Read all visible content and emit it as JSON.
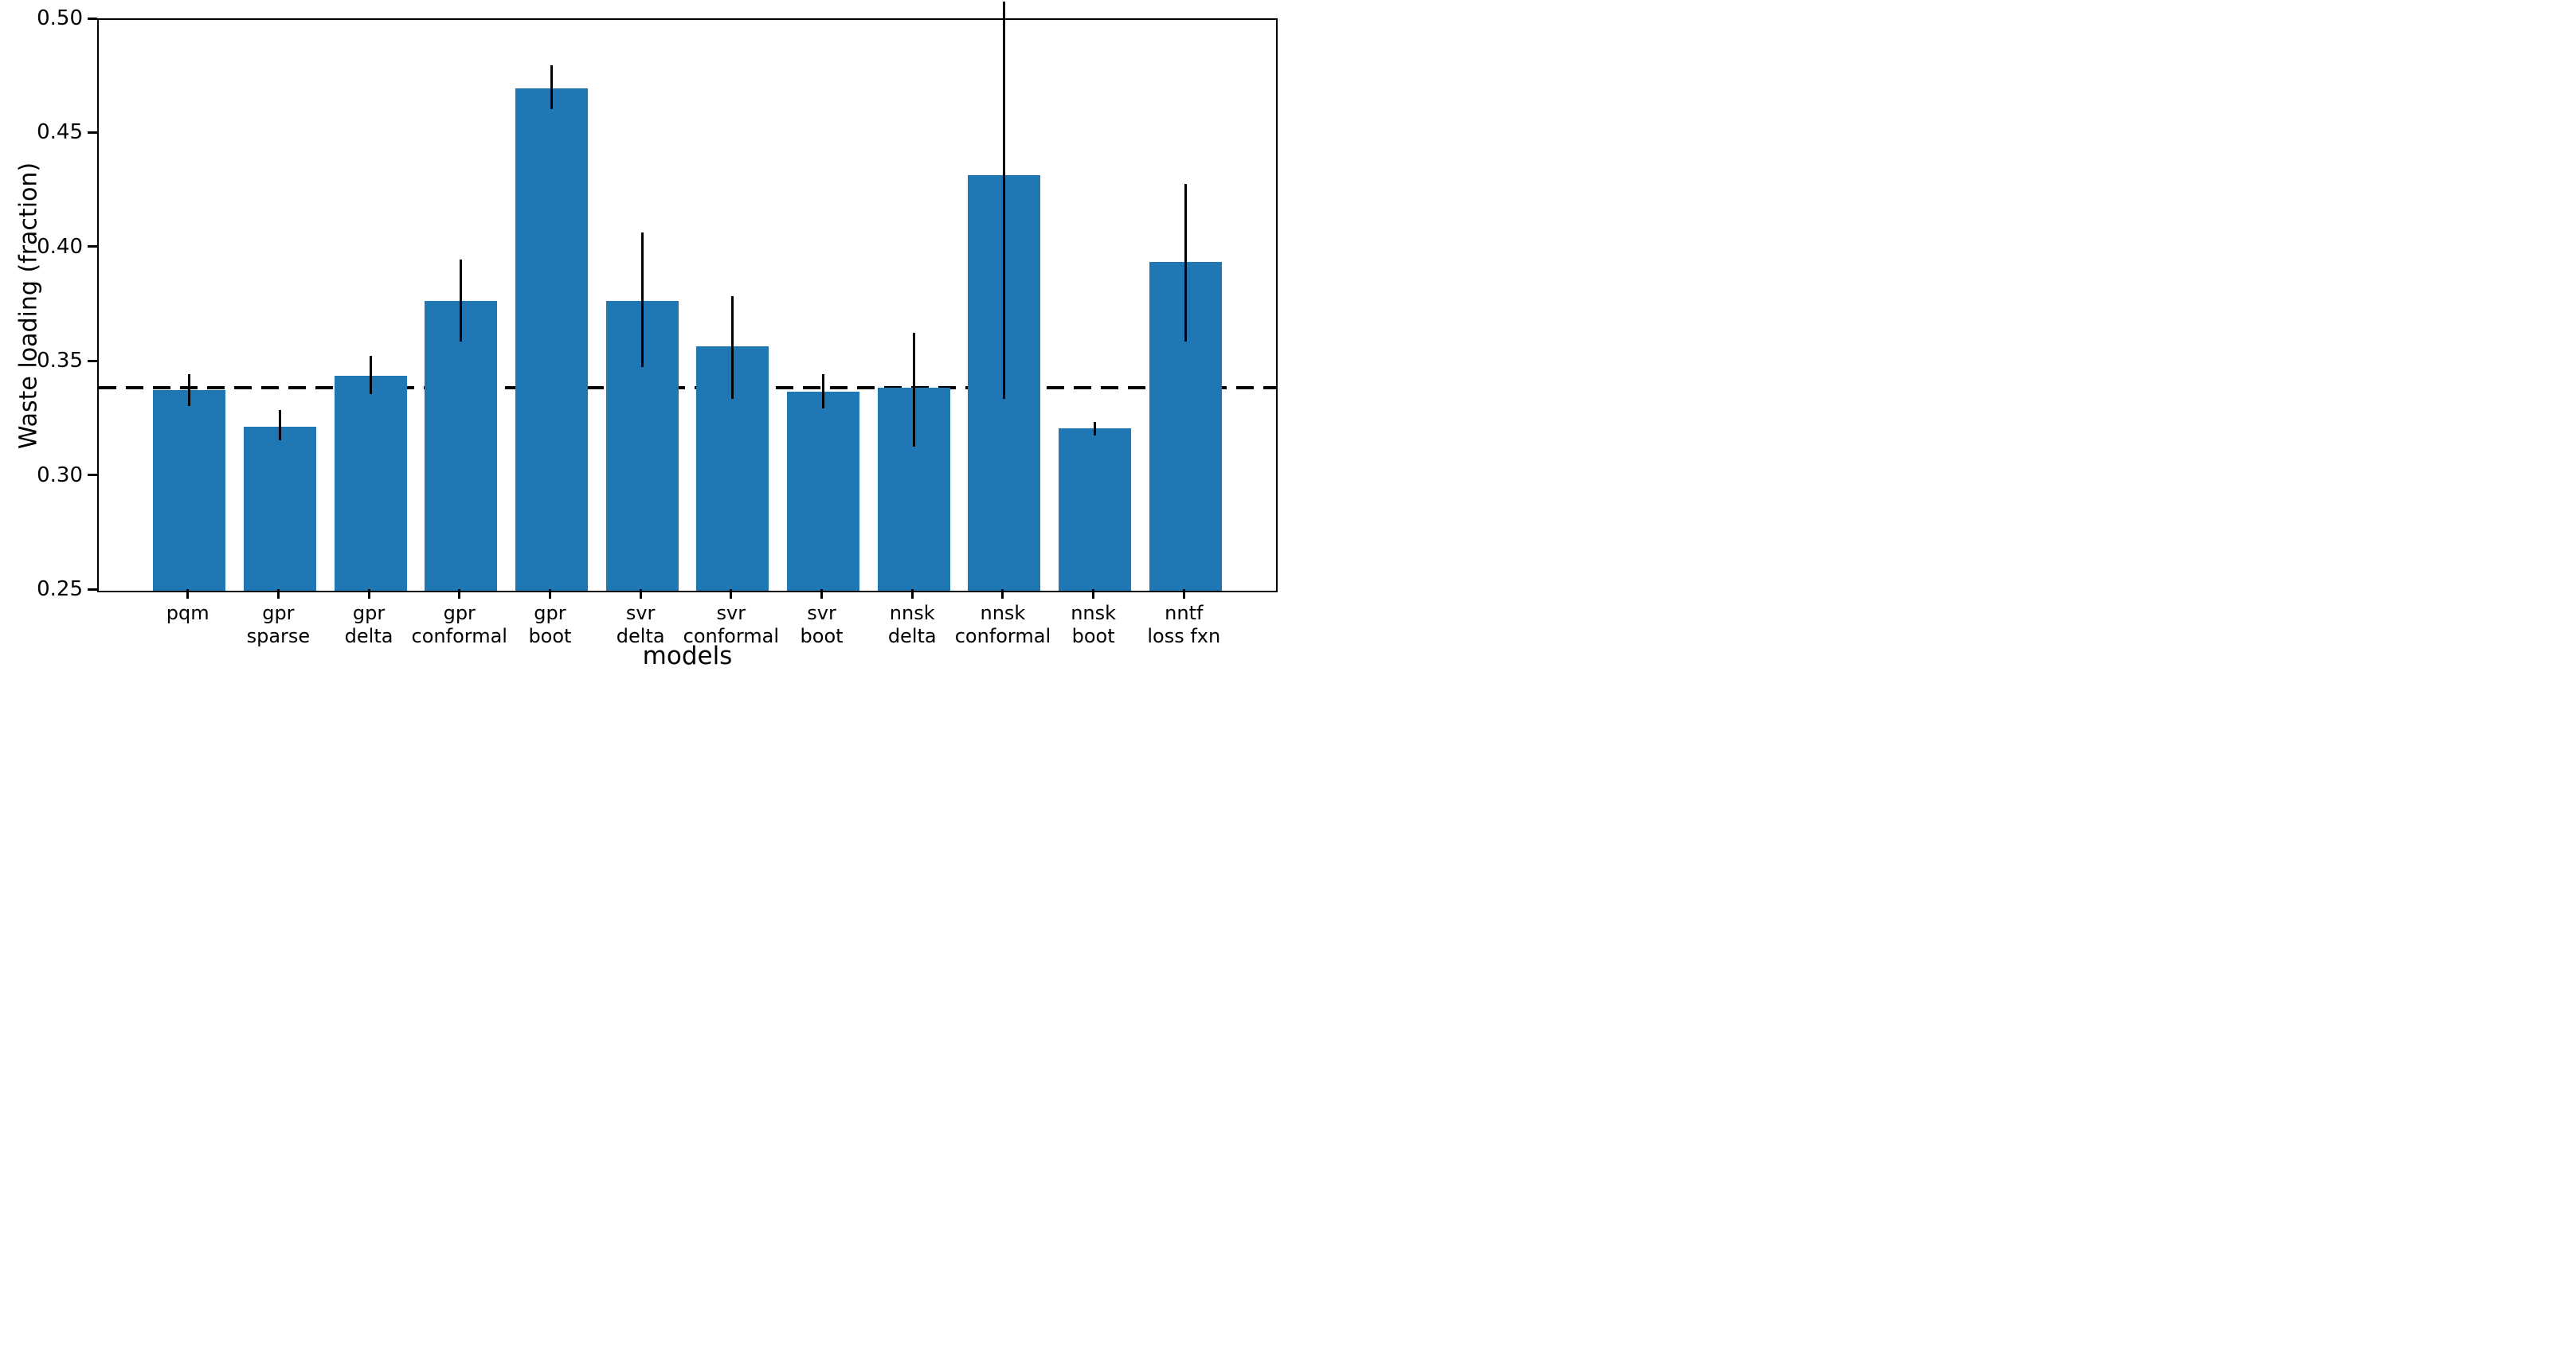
{
  "figure": {
    "background": "#ffffff",
    "bar_color": "#1f77b4",
    "line_color": "#000000"
  },
  "chart_data": {
    "type": "bar",
    "title": "",
    "xlabel": "models",
    "ylabel": "Waste loading (fraction)",
    "ylim": [
      0.25,
      0.5
    ],
    "yticks": [
      0.25,
      0.3,
      0.35,
      0.4,
      0.45,
      0.5
    ],
    "ytick_labels": [
      "0.25",
      "0.30",
      "0.35",
      "0.40",
      "0.45",
      "0.50"
    ],
    "grid": false,
    "legend_position": "none",
    "reference_dashed_line_y": 0.339,
    "bar_width_fraction": 0.8,
    "categories": [
      [
        "pqm",
        ""
      ],
      [
        "gpr",
        "sparse"
      ],
      [
        "gpr",
        "delta"
      ],
      [
        "gpr",
        "conformal"
      ],
      [
        "gpr",
        "boot"
      ],
      [
        "svr",
        "delta"
      ],
      [
        "svr",
        "conformal"
      ],
      [
        "svr",
        "boot"
      ],
      [
        "nnsk",
        "delta"
      ],
      [
        "nnsk",
        "conformal"
      ],
      [
        "nnsk",
        "boot"
      ],
      [
        "nntf",
        "loss fxn"
      ]
    ],
    "values": [
      0.338,
      0.322,
      0.344,
      0.377,
      0.47,
      0.377,
      0.357,
      0.337,
      0.339,
      0.432,
      0.321,
      0.394
    ],
    "error_low": [
      0.331,
      0.316,
      0.336,
      0.359,
      0.461,
      0.348,
      0.334,
      0.33,
      0.313,
      0.334,
      0.318,
      0.359
    ],
    "error_high": [
      0.345,
      0.329,
      0.353,
      0.395,
      0.48,
      0.407,
      0.379,
      0.345,
      0.363,
      0.508,
      0.324,
      0.428
    ]
  }
}
